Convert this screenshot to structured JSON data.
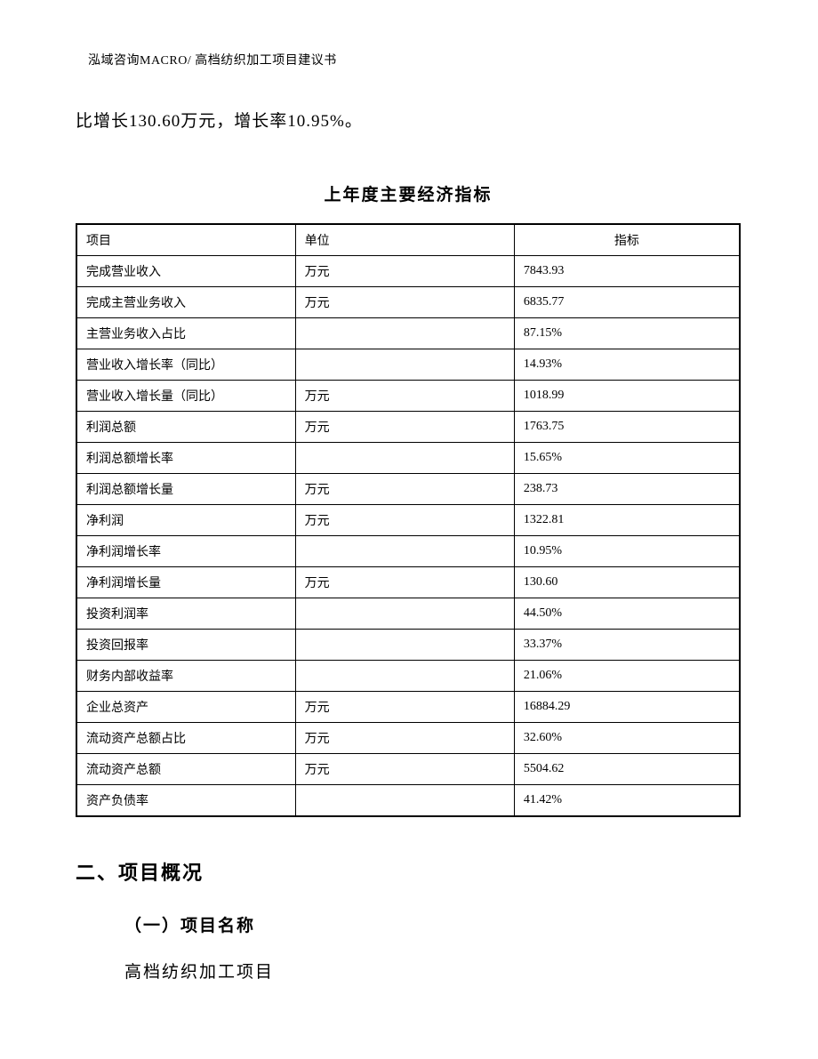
{
  "pageHeader": "泓域咨询MACRO/ 高档纺织加工项目建议书",
  "bodyText": "比增长130.60万元，增长率10.95%。",
  "tableTitle": "上年度主要经济指标",
  "table": {
    "columns": [
      "项目",
      "单位",
      "指标"
    ],
    "rows": [
      [
        "完成营业收入",
        "万元",
        "7843.93"
      ],
      [
        "完成主营业务收入",
        "万元",
        "6835.77"
      ],
      [
        "主营业务收入占比",
        "",
        "87.15%"
      ],
      [
        "营业收入增长率（同比）",
        "",
        "14.93%"
      ],
      [
        "营业收入增长量（同比）",
        "万元",
        "1018.99"
      ],
      [
        "利润总额",
        "万元",
        "1763.75"
      ],
      [
        "利润总额增长率",
        "",
        "15.65%"
      ],
      [
        "利润总额增长量",
        "万元",
        "238.73"
      ],
      [
        "净利润",
        "万元",
        "1322.81"
      ],
      [
        "净利润增长率",
        "",
        "10.95%"
      ],
      [
        "净利润增长量",
        "万元",
        "130.60"
      ],
      [
        "投资利润率",
        "",
        "44.50%"
      ],
      [
        "投资回报率",
        "",
        "33.37%"
      ],
      [
        "财务内部收益率",
        "",
        "21.06%"
      ],
      [
        "企业总资产",
        "万元",
        "16884.29"
      ],
      [
        "流动资产总额占比",
        "万元",
        "32.60%"
      ],
      [
        "流动资产总额",
        "万元",
        "5504.62"
      ],
      [
        "资产负债率",
        "",
        "41.42%"
      ]
    ]
  },
  "sectionHeading": "二、项目概况",
  "subHeading": "（一）项目名称",
  "projectName": "高档纺织加工项目"
}
